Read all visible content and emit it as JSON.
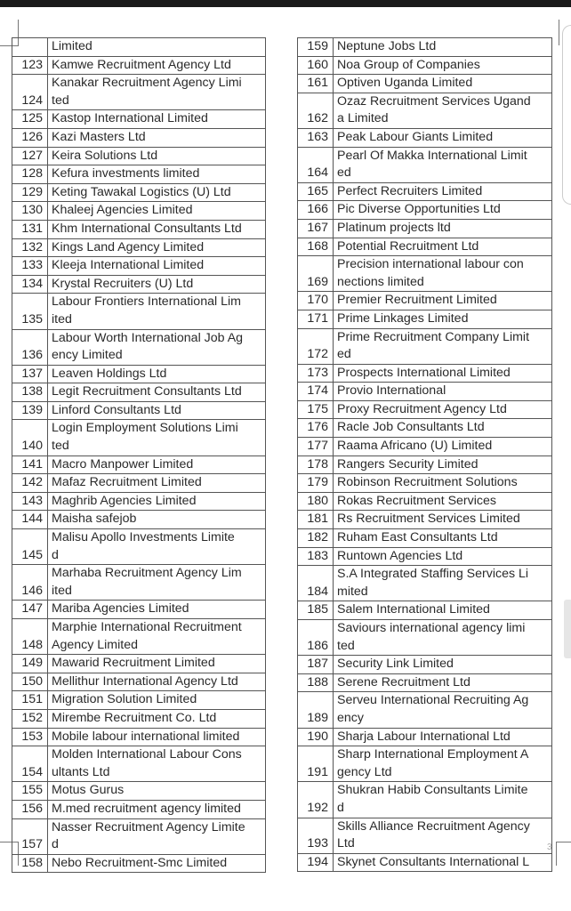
{
  "page_number": "3",
  "left_rows": [
    {
      "num": "",
      "lines": [
        "Limited"
      ]
    },
    {
      "num": "123",
      "lines": [
        "Kamwe Recruitment Agency Ltd"
      ]
    },
    {
      "num": "124",
      "lines": [
        "Kanakar Recruitment Agency Limi",
        "ted"
      ]
    },
    {
      "num": "125",
      "lines": [
        "Kastop International Limited"
      ]
    },
    {
      "num": "126",
      "lines": [
        "Kazi Masters Ltd"
      ]
    },
    {
      "num": "127",
      "lines": [
        "Keira Solutions Ltd"
      ]
    },
    {
      "num": "128",
      "lines": [
        "Kefura investments limited"
      ]
    },
    {
      "num": "129",
      "lines": [
        "Keting Tawakal Logistics (U) Ltd"
      ]
    },
    {
      "num": "130",
      "lines": [
        "Khaleej Agencies Limited"
      ]
    },
    {
      "num": "131",
      "lines": [
        "Khm International Consultants Ltd"
      ]
    },
    {
      "num": "132",
      "lines": [
        "Kings Land Agency Limited"
      ]
    },
    {
      "num": "133",
      "lines": [
        "Kleeja International Limited"
      ]
    },
    {
      "num": "134",
      "lines": [
        "Krystal Recruiters (U) Ltd"
      ]
    },
    {
      "num": "135",
      "lines": [
        "Labour Frontiers International Lim",
        "ited"
      ]
    },
    {
      "num": "136",
      "lines": [
        "Labour Worth International Job Ag",
        "ency Limited"
      ]
    },
    {
      "num": "137",
      "lines": [
        "Leaven Holdings Ltd"
      ]
    },
    {
      "num": "138",
      "lines": [
        "Legit Recruitment Consultants Ltd"
      ]
    },
    {
      "num": "139",
      "lines": [
        "Linford Consultants Ltd"
      ]
    },
    {
      "num": "140",
      "lines": [
        "Login Employment Solutions Limi",
        "ted"
      ]
    },
    {
      "num": "141",
      "lines": [
        "Macro Manpower Limited"
      ]
    },
    {
      "num": "142",
      "lines": [
        "Mafaz Recruitment Limited"
      ]
    },
    {
      "num": "143",
      "lines": [
        "Maghrib Agencies Limited"
      ]
    },
    {
      "num": "144",
      "lines": [
        "Maisha safejob"
      ]
    },
    {
      "num": "145",
      "lines": [
        "Malisu Apollo Investments Limite",
        "d"
      ]
    },
    {
      "num": "146",
      "lines": [
        "Marhaba Recruitment Agency Lim",
        "ited"
      ]
    },
    {
      "num": "147",
      "lines": [
        "Mariba Agencies Limited"
      ]
    },
    {
      "num": "148",
      "lines": [
        "Marphie International Recruitment",
        "Agency Limited"
      ]
    },
    {
      "num": "149",
      "lines": [
        "Mawarid Recruitment Limited"
      ]
    },
    {
      "num": "150",
      "lines": [
        "Mellithur International Agency Ltd"
      ]
    },
    {
      "num": "151",
      "lines": [
        "Migration Solution Limited"
      ]
    },
    {
      "num": "152",
      "lines": [
        "Mirembe Recruitment Co. Ltd"
      ]
    },
    {
      "num": "153",
      "lines": [
        "Mobile labour international limited"
      ]
    },
    {
      "num": "154",
      "lines": [
        "Molden International Labour Cons",
        "ultants Ltd"
      ]
    },
    {
      "num": "155",
      "lines": [
        "Motus Gurus"
      ]
    },
    {
      "num": "156",
      "lines": [
        "M.med recruitment agency limited"
      ]
    },
    {
      "num": "157",
      "lines": [
        "Nasser Recruitment Agency Limite",
        "d"
      ]
    },
    {
      "num": "158",
      "lines": [
        "Nebo Recruitment-Smc Limited"
      ]
    }
  ],
  "right_rows": [
    {
      "num": "159",
      "lines": [
        "Neptune Jobs Ltd"
      ]
    },
    {
      "num": "160",
      "lines": [
        "Noa Group of Companies"
      ]
    },
    {
      "num": "161",
      "lines": [
        "Optiven Uganda Limited"
      ]
    },
    {
      "num": "162",
      "lines": [
        "Ozaz Recruitment Services Ugand",
        "a Limited"
      ]
    },
    {
      "num": "163",
      "lines": [
        "Peak Labour Giants Limited"
      ]
    },
    {
      "num": "164",
      "lines": [
        "Pearl Of Makka International Limit",
        "ed"
      ]
    },
    {
      "num": "165",
      "lines": [
        "Perfect Recruiters Limited"
      ]
    },
    {
      "num": "166",
      "lines": [
        "Pic Diverse Opportunities Ltd"
      ]
    },
    {
      "num": "167",
      "lines": [
        "Platinum projects ltd"
      ]
    },
    {
      "num": "168",
      "lines": [
        "Potential Recruitment Ltd"
      ]
    },
    {
      "num": "169",
      "lines": [
        "Precision international labour con",
        "nections limited"
      ]
    },
    {
      "num": "170",
      "lines": [
        "Premier Recruitment Limited"
      ]
    },
    {
      "num": "171",
      "lines": [
        "Prime Linkages Limited"
      ]
    },
    {
      "num": "172",
      "lines": [
        "Prime Recruitment Company Limit",
        "ed"
      ]
    },
    {
      "num": "173",
      "lines": [
        "Prospects International Limited"
      ]
    },
    {
      "num": "174",
      "lines": [
        "Provio International"
      ]
    },
    {
      "num": "175",
      "lines": [
        "Proxy Recruitment Agency Ltd"
      ]
    },
    {
      "num": "176",
      "lines": [
        "Racle Job Consultants Ltd"
      ]
    },
    {
      "num": "177",
      "lines": [
        "Raama Africano (U) Limited"
      ]
    },
    {
      "num": "178",
      "lines": [
        "Rangers Security Limited"
      ]
    },
    {
      "num": "179",
      "lines": [
        "Robinson Recruitment Solutions"
      ]
    },
    {
      "num": "180",
      "lines": [
        "Rokas Recruitment Services"
      ]
    },
    {
      "num": "181",
      "lines": [
        "Rs Recruitment Services Limited"
      ]
    },
    {
      "num": "182",
      "lines": [
        "Ruham East Consultants Ltd"
      ]
    },
    {
      "num": "183",
      "lines": [
        "Runtown Agencies Ltd"
      ]
    },
    {
      "num": "184",
      "lines": [
        "S.A Integrated Staffing Services Li",
        "mited"
      ]
    },
    {
      "num": "185",
      "lines": [
        "Salem International Limited"
      ]
    },
    {
      "num": "186",
      "lines": [
        "Saviours international agency limi",
        "ted"
      ]
    },
    {
      "num": "187",
      "lines": [
        "Security Link Limited"
      ]
    },
    {
      "num": "188",
      "lines": [
        "Serene Recruitment Ltd"
      ]
    },
    {
      "num": "189",
      "lines": [
        "Serveu International Recruiting Ag",
        "ency"
      ]
    },
    {
      "num": "190",
      "lines": [
        "Sharja Labour International Ltd"
      ]
    },
    {
      "num": "191",
      "lines": [
        "Sharp International Employment A",
        "gency Ltd"
      ]
    },
    {
      "num": "192",
      "lines": [
        "Shukran Habib Consultants Limite",
        "d"
      ]
    },
    {
      "num": "193",
      "lines": [
        "Skills Alliance Recruitment Agency",
        "Ltd"
      ]
    },
    {
      "num": "194",
      "lines": [
        "Skynet Consultants International L"
      ]
    }
  ]
}
